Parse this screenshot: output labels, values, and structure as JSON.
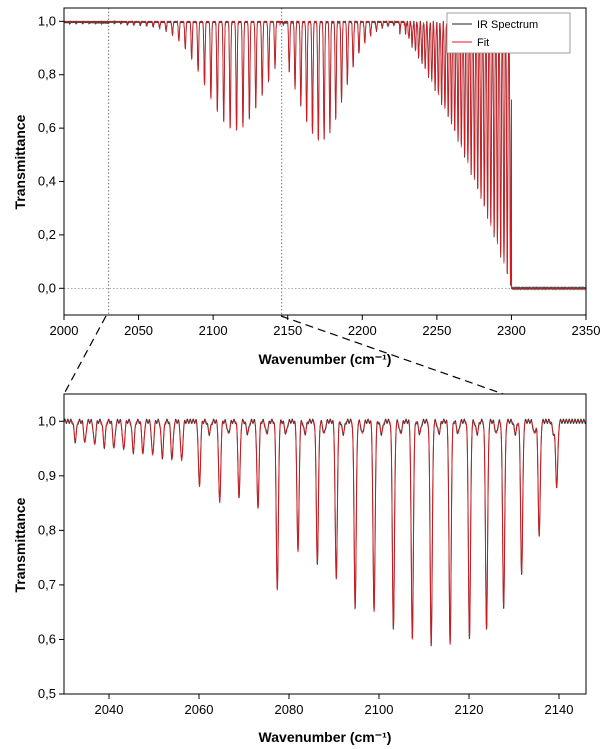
{
  "chart_data": [
    {
      "type": "line",
      "xlabel": "Wavenumber (cm⁻¹)",
      "ylabel": "Transmittance",
      "xlim": [
        2000,
        2350
      ],
      "ylim": [
        -0.1,
        1.05
      ],
      "x_ticks": [
        "2000",
        "2050",
        "2100",
        "2150",
        "2200",
        "2250",
        "2300",
        "2350"
      ],
      "y_ticks": [
        "0,0",
        "0,2",
        "0,4",
        "0,6",
        "0,8",
        "1,0"
      ],
      "legend": [
        "IR Spectrum",
        "Fit"
      ],
      "legend_position": "top-right",
      "zero_reference_line": 0.0,
      "zoom_region_markers": [
        2030,
        2146
      ],
      "series": [
        {
          "name": "IR Spectrum",
          "color": "#222222"
        },
        {
          "name": "Fit",
          "color": "#e8141c"
        }
      ],
      "band_envelope": {
        "p_branch": {
          "from": 2040,
          "to": 2145,
          "center": 2115,
          "min_transmittance": 0.59
        },
        "r_branch": {
          "from": 2150,
          "to": 2225,
          "center": 2172,
          "min_transmittance": 0.55
        },
        "saturated_region": {
          "from": 2228,
          "to": 2300,
          "min_transmittance": 0.0
        },
        "baseline_above": {
          "x": 2300,
          "transmittance": 0.0
        }
      }
    },
    {
      "type": "line",
      "xlabel": "Wavenumber (cm⁻¹)",
      "ylabel": "Transmittance",
      "xlim": [
        2030,
        2146
      ],
      "ylim": [
        0.5,
        1.05
      ],
      "x_ticks": [
        "2040",
        "2060",
        "2080",
        "2100",
        "2120",
        "2140"
      ],
      "y_ticks": [
        "0,5",
        "0,6",
        "0,7",
        "0,8",
        "0,9",
        "1,0"
      ],
      "series": [
        {
          "name": "IR Spectrum",
          "color": "#222222"
        },
        {
          "name": "Fit",
          "color": "#e8141c"
        }
      ],
      "strong_lines": [
        {
          "x": 2060.1,
          "t": 0.88
        },
        {
          "x": 2064.6,
          "t": 0.85
        },
        {
          "x": 2068.9,
          "t": 0.86
        },
        {
          "x": 2073.1,
          "t": 0.84
        },
        {
          "x": 2077.4,
          "t": 0.69
        },
        {
          "x": 2082.0,
          "t": 0.76
        },
        {
          "x": 2086.3,
          "t": 0.74
        },
        {
          "x": 2090.5,
          "t": 0.71
        },
        {
          "x": 2094.7,
          "t": 0.66
        },
        {
          "x": 2098.9,
          "t": 0.65
        },
        {
          "x": 2103.2,
          "t": 0.62
        },
        {
          "x": 2107.4,
          "t": 0.6
        },
        {
          "x": 2111.6,
          "t": 0.59
        },
        {
          "x": 2115.8,
          "t": 0.59
        },
        {
          "x": 2120.1,
          "t": 0.6
        },
        {
          "x": 2123.9,
          "t": 0.62
        },
        {
          "x": 2127.7,
          "t": 0.66
        },
        {
          "x": 2131.7,
          "t": 0.72
        },
        {
          "x": 2135.6,
          "t": 0.79
        },
        {
          "x": 2139.5,
          "t": 0.88
        }
      ],
      "weak_lines_region": {
        "from": 2032,
        "to": 2058,
        "min_transmittance": 0.92
      }
    }
  ]
}
